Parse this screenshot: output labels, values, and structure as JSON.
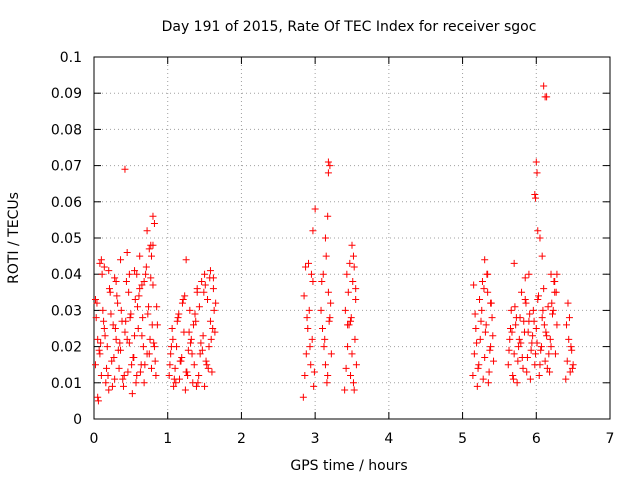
{
  "chart_data": {
    "type": "scatter",
    "title": "Day 191 of 2015, Rate Of TEC Index for receiver sgoc",
    "xlabel": "GPS time / hours",
    "ylabel": "ROTI / TECUs",
    "xlim": [
      0,
      7
    ],
    "ylim": [
      0,
      0.1
    ],
    "xticks": [
      "0",
      "1",
      "2",
      "3",
      "4",
      "5",
      "6",
      "7"
    ],
    "yticks": [
      "0",
      "0.01",
      "0.02",
      "0.03",
      "0.04",
      "0.05",
      "0.06",
      "0.07",
      "0.08",
      "0.09",
      "0.1"
    ],
    "grid": true,
    "marker": "+",
    "color": "#ff0000",
    "series": [
      {
        "x": [
          0.02,
          0.03,
          0.05,
          0.06,
          0.08,
          0.1,
          0.12,
          0.14,
          0.16,
          0.18,
          0.2,
          0.22,
          0.24,
          0.26,
          0.28,
          0.3,
          0.32,
          0.34,
          0.36,
          0.38,
          0.4,
          0.42,
          0.44,
          0.46,
          0.48,
          0.5,
          0.52,
          0.54,
          0.56,
          0.58,
          0.6,
          0.62,
          0.64,
          0.66,
          0.68,
          0.7,
          0.72,
          0.74,
          0.76,
          0.78,
          0.8,
          0.82,
          0.84,
          0.86,
          0.04,
          0.07,
          0.11,
          0.15,
          0.19,
          0.23,
          0.27,
          0.31,
          0.35,
          0.39,
          0.43,
          0.47,
          0.51,
          0.55,
          0.59,
          0.63,
          0.67,
          0.71,
          0.75,
          0.79,
          0.83,
          0.05,
          0.09,
          0.13,
          0.17,
          0.21,
          0.25,
          0.29,
          0.33,
          0.37,
          0.41,
          0.45,
          0.49,
          0.53,
          0.57,
          0.61,
          0.65,
          0.69,
          0.73,
          0.77,
          0.81,
          0.85,
          0.1,
          0.2,
          0.3,
          0.45,
          0.55,
          0.65,
          0.75,
          0.8,
          0.42,
          0.72,
          0.8,
          0.82,
          0.77,
          0.62,
          0.02,
          0.08,
          0.14,
          0.28,
          0.36,
          0.48,
          0.58,
          0.68,
          0.78
        ],
        "y": [
          0.015,
          0.028,
          0.022,
          0.005,
          0.018,
          0.012,
          0.03,
          0.025,
          0.01,
          0.02,
          0.008,
          0.035,
          0.016,
          0.026,
          0.011,
          0.022,
          0.032,
          0.014,
          0.019,
          0.027,
          0.009,
          0.024,
          0.038,
          0.013,
          0.021,
          0.029,
          0.007,
          0.017,
          0.033,
          0.012,
          0.025,
          0.036,
          0.015,
          0.028,
          0.01,
          0.04,
          0.018,
          0.031,
          0.022,
          0.014,
          0.037,
          0.02,
          0.012,
          0.026,
          0.032,
          0.019,
          0.04,
          0.023,
          0.012,
          0.029,
          0.017,
          0.034,
          0.021,
          0.011,
          0.027,
          0.035,
          0.015,
          0.023,
          0.031,
          0.013,
          0.02,
          0.042,
          0.018,
          0.026,
          0.016,
          0.006,
          0.021,
          0.027,
          0.014,
          0.036,
          0.009,
          0.025,
          0.019,
          0.03,
          0.012,
          0.022,
          0.028,
          0.017,
          0.01,
          0.034,
          0.023,
          0.015,
          0.029,
          0.039,
          0.021,
          0.031,
          0.044,
          0.041,
          0.038,
          0.046,
          0.041,
          0.037,
          0.047,
          0.048,
          0.069,
          0.052,
          0.056,
          0.054,
          0.048,
          0.045,
          0.033,
          0.043,
          0.042,
          0.039,
          0.044,
          0.04,
          0.04,
          0.038,
          0.045
        ]
      },
      {
        "x": [
          1.02,
          1.04,
          1.06,
          1.08,
          1.1,
          1.12,
          1.14,
          1.16,
          1.18,
          1.2,
          1.22,
          1.24,
          1.26,
          1.28,
          1.3,
          1.32,
          1.34,
          1.36,
          1.38,
          1.4,
          1.42,
          1.44,
          1.46,
          1.48,
          1.5,
          1.52,
          1.54,
          1.56,
          1.58,
          1.6,
          1.62,
          1.64,
          1.03,
          1.07,
          1.11,
          1.15,
          1.19,
          1.23,
          1.27,
          1.31,
          1.35,
          1.39,
          1.43,
          1.47,
          1.51,
          1.55,
          1.59,
          1.63,
          1.05,
          1.09,
          1.13,
          1.17,
          1.21,
          1.25,
          1.29,
          1.33,
          1.37,
          1.41,
          1.45,
          1.49,
          1.53,
          1.57,
          1.61,
          1.65,
          1.25,
          1.4,
          1.5,
          1.58,
          1.62
        ],
        "y": [
          0.012,
          0.018,
          0.025,
          0.009,
          0.014,
          0.02,
          0.028,
          0.011,
          0.016,
          0.032,
          0.024,
          0.008,
          0.013,
          0.019,
          0.03,
          0.022,
          0.01,
          0.015,
          0.027,
          0.035,
          0.012,
          0.018,
          0.038,
          0.023,
          0.009,
          0.016,
          0.033,
          0.02,
          0.027,
          0.013,
          0.036,
          0.024,
          0.015,
          0.022,
          0.01,
          0.029,
          0.017,
          0.034,
          0.012,
          0.021,
          0.026,
          0.009,
          0.031,
          0.019,
          0.037,
          0.014,
          0.022,
          0.03,
          0.02,
          0.011,
          0.027,
          0.016,
          0.033,
          0.013,
          0.024,
          0.018,
          0.029,
          0.01,
          0.021,
          0.035,
          0.015,
          0.039,
          0.025,
          0.032,
          0.044,
          0.036,
          0.04,
          0.041,
          0.039
        ]
      },
      {
        "x": [
          2.84,
          2.86,
          2.88,
          2.9,
          2.92,
          2.94,
          2.96,
          2.98,
          2.85,
          2.89,
          2.93,
          2.97,
          2.87,
          2.91,
          2.95,
          2.99,
          3.08,
          3.1,
          3.12,
          3.14,
          3.16,
          3.18,
          3.2,
          3.22,
          3.09,
          3.13,
          3.17,
          3.21,
          3.11,
          3.15,
          3.19,
          2.97,
          3.0,
          3.18,
          3.18,
          3.2,
          3.17,
          3.14
        ],
        "y": [
          0.006,
          0.012,
          0.018,
          0.025,
          0.03,
          0.015,
          0.022,
          0.009,
          0.034,
          0.028,
          0.02,
          0.038,
          0.042,
          0.043,
          0.04,
          0.013,
          0.03,
          0.025,
          0.02,
          0.015,
          0.01,
          0.035,
          0.028,
          0.018,
          0.038,
          0.022,
          0.012,
          0.032,
          0.04,
          0.045,
          0.027,
          0.052,
          0.058,
          0.071,
          0.068,
          0.07,
          0.056,
          0.05
        ]
      },
      {
        "x": [
          3.4,
          3.42,
          3.44,
          3.46,
          3.48,
          3.5,
          3.52,
          3.54,
          3.56,
          3.41,
          3.45,
          3.49,
          3.53,
          3.43,
          3.47,
          3.51,
          3.55,
          3.44,
          3.48,
          3.52,
          3.5,
          3.53,
          3.55
        ],
        "y": [
          0.008,
          0.014,
          0.02,
          0.026,
          0.012,
          0.018,
          0.01,
          0.022,
          0.015,
          0.03,
          0.035,
          0.028,
          0.008,
          0.04,
          0.043,
          0.038,
          0.033,
          0.026,
          0.027,
          0.045,
          0.048,
          0.042,
          0.036
        ]
      },
      {
        "x": [
          5.14,
          5.16,
          5.18,
          5.2,
          5.22,
          5.24,
          5.26,
          5.28,
          5.3,
          5.32,
          5.34,
          5.36,
          5.38,
          5.4,
          5.42,
          5.15,
          5.19,
          5.23,
          5.27,
          5.31,
          5.35,
          5.39,
          5.17,
          5.21,
          5.25,
          5.29,
          5.33,
          5.37,
          5.41,
          5.3,
          5.34,
          5.38
        ],
        "y": [
          0.012,
          0.018,
          0.025,
          0.009,
          0.015,
          0.022,
          0.03,
          0.011,
          0.017,
          0.026,
          0.035,
          0.013,
          0.02,
          0.028,
          0.016,
          0.037,
          0.021,
          0.033,
          0.038,
          0.024,
          0.01,
          0.032,
          0.029,
          0.014,
          0.027,
          0.036,
          0.04,
          0.019,
          0.023,
          0.044,
          0.04,
          0.032
        ]
      },
      {
        "x": [
          5.62,
          5.64,
          5.66,
          5.68,
          5.7,
          5.72,
          5.74,
          5.76,
          5.78,
          5.8,
          5.82,
          5.84,
          5.86,
          5.88,
          5.9,
          5.92,
          5.94,
          5.96,
          5.98,
          6.0,
          6.02,
          6.04,
          6.06,
          6.08,
          6.1,
          6.12,
          6.14,
          6.16,
          6.18,
          6.2,
          6.22,
          6.24,
          6.26,
          6.28,
          5.63,
          5.67,
          5.71,
          5.75,
          5.79,
          5.83,
          5.87,
          5.91,
          5.95,
          5.99,
          6.03,
          6.07,
          6.11,
          6.15,
          6.19,
          6.23,
          6.27,
          5.65,
          5.69,
          5.73,
          5.77,
          5.81,
          5.85,
          5.89,
          5.93,
          5.97,
          6.01,
          6.05,
          6.09,
          6.13,
          6.17,
          6.21,
          6.25,
          5.98,
          6.0,
          6.01,
          5.99,
          6.02,
          6.05,
          6.08,
          6.1,
          6.12,
          6.14,
          5.7,
          5.85,
          5.9,
          6.2,
          6.25,
          6.28
        ],
        "y": [
          0.015,
          0.022,
          0.03,
          0.012,
          0.018,
          0.026,
          0.01,
          0.02,
          0.028,
          0.035,
          0.014,
          0.024,
          0.032,
          0.017,
          0.027,
          0.011,
          0.021,
          0.03,
          0.015,
          0.025,
          0.033,
          0.012,
          0.019,
          0.028,
          0.036,
          0.016,
          0.023,
          0.031,
          0.013,
          0.02,
          0.029,
          0.038,
          0.018,
          0.026,
          0.019,
          0.024,
          0.031,
          0.016,
          0.021,
          0.027,
          0.013,
          0.029,
          0.023,
          0.018,
          0.034,
          0.02,
          0.026,
          0.014,
          0.022,
          0.03,
          0.035,
          0.025,
          0.011,
          0.028,
          0.022,
          0.017,
          0.033,
          0.024,
          0.019,
          0.027,
          0.021,
          0.015,
          0.03,
          0.024,
          0.018,
          0.032,
          0.038,
          0.062,
          0.071,
          0.068,
          0.061,
          0.052,
          0.05,
          0.045,
          0.092,
          0.089,
          0.089,
          0.043,
          0.039,
          0.04,
          0.04,
          0.035,
          0.04
        ]
      },
      {
        "x": [
          6.4,
          6.42,
          6.44,
          6.46,
          6.48,
          6.5,
          6.41,
          6.43,
          6.45,
          6.47,
          6.49
        ],
        "y": [
          0.011,
          0.016,
          0.022,
          0.013,
          0.019,
          0.015,
          0.026,
          0.032,
          0.028,
          0.02,
          0.014
        ]
      }
    ]
  }
}
